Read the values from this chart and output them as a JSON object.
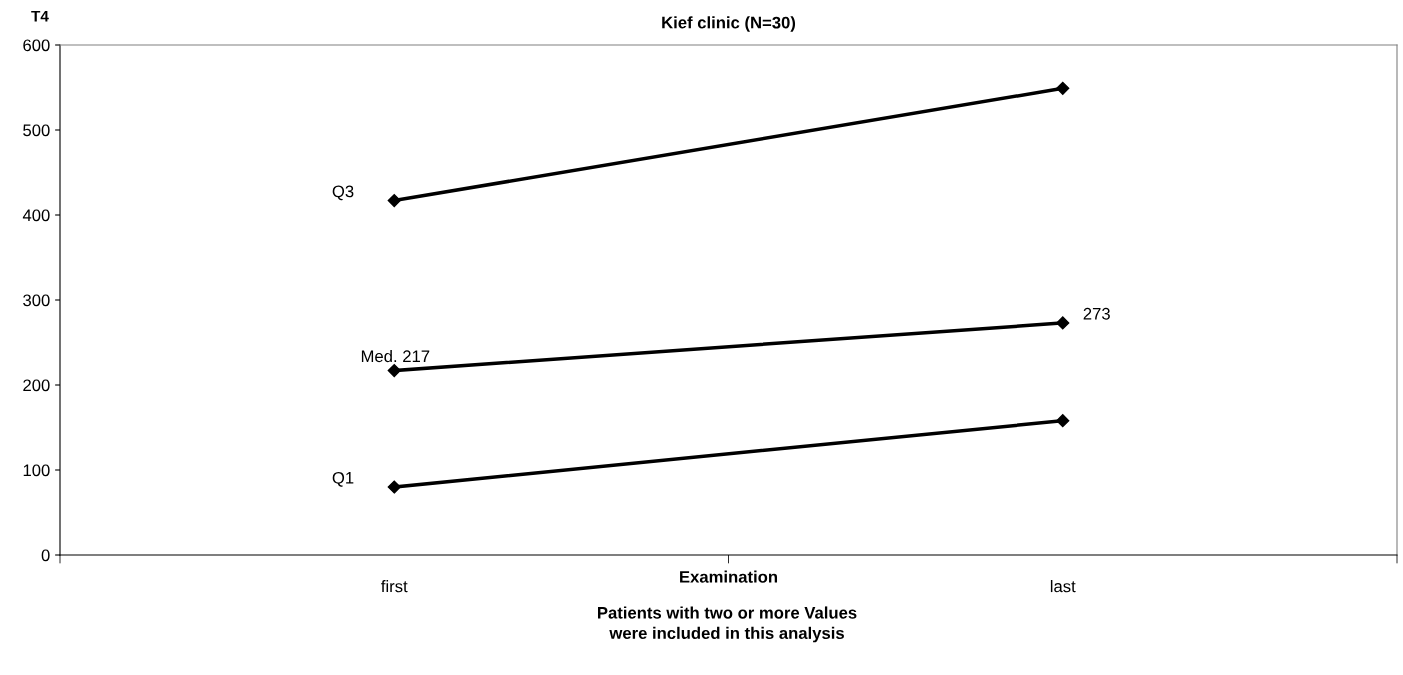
{
  "chart_data": {
    "type": "line",
    "title": "Kief clinic (N=30)",
    "ylabel": "T4",
    "xlabel": "Examination",
    "categories": [
      "first",
      "last"
    ],
    "series": [
      {
        "name": "Q3",
        "color": "#000000",
        "values": [
          417,
          549
        ]
      },
      {
        "name": "Med.",
        "color": "#000000",
        "values": [
          217,
          273
        ],
        "value_labels": [
          "217",
          "273"
        ]
      },
      {
        "name": "Q1",
        "color": "#000000",
        "values": [
          80,
          158
        ]
      }
    ],
    "ylim": [
      0,
      600
    ],
    "yticks": [
      0,
      100,
      200,
      300,
      400,
      500,
      600
    ],
    "grid": false,
    "legend": false,
    "marker": "diamond",
    "line_style": "solid",
    "annotations": [
      "Patients with two or more Values\nwere included in this analysis"
    ]
  }
}
